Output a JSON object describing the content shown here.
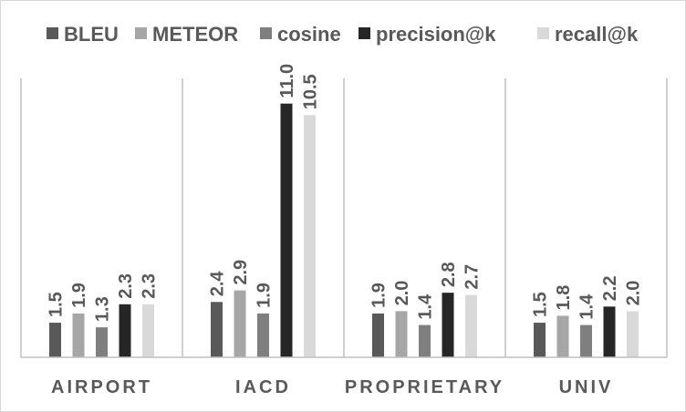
{
  "chart_data": {
    "type": "bar",
    "title": "",
    "xlabel": "",
    "ylabel": "",
    "categories": [
      "AIRPORT",
      "IACD",
      "PROPRIETARY",
      "UNIV"
    ],
    "series": [
      {
        "name": "BLEU",
        "color": "#595959",
        "values": [
          1.5,
          2.4,
          1.9,
          1.5
        ],
        "labels": [
          "1.5",
          "2.4",
          "1.9",
          "1.5"
        ]
      },
      {
        "name": "METEOR",
        "color": "#a6a6a6",
        "values": [
          1.9,
          2.9,
          2.0,
          1.8
        ],
        "labels": [
          "1.9",
          "2.9",
          "2.0",
          "1.8"
        ]
      },
      {
        "name": "cosine",
        "color": "#7f7f7f",
        "values": [
          1.3,
          1.9,
          1.4,
          1.4
        ],
        "labels": [
          "1.3",
          "1.9",
          "1.4",
          "1.4"
        ]
      },
      {
        "name": "precision@k",
        "color": "#262626",
        "values": [
          2.3,
          11.0,
          2.8,
          2.2
        ],
        "labels": [
          "2.3",
          "11.0",
          "2.8",
          "2.2"
        ]
      },
      {
        "name": "recall@k",
        "color": "#d9d9d9",
        "values": [
          2.3,
          10.5,
          2.7,
          2.0
        ],
        "labels": [
          "2.3",
          "10.5",
          "2.7",
          "2.0"
        ]
      }
    ],
    "ylim": [
      0,
      11.5
    ],
    "grid": false,
    "legend_position": "top",
    "axis_color": "#bfbfbf",
    "text_color": "#595959"
  }
}
